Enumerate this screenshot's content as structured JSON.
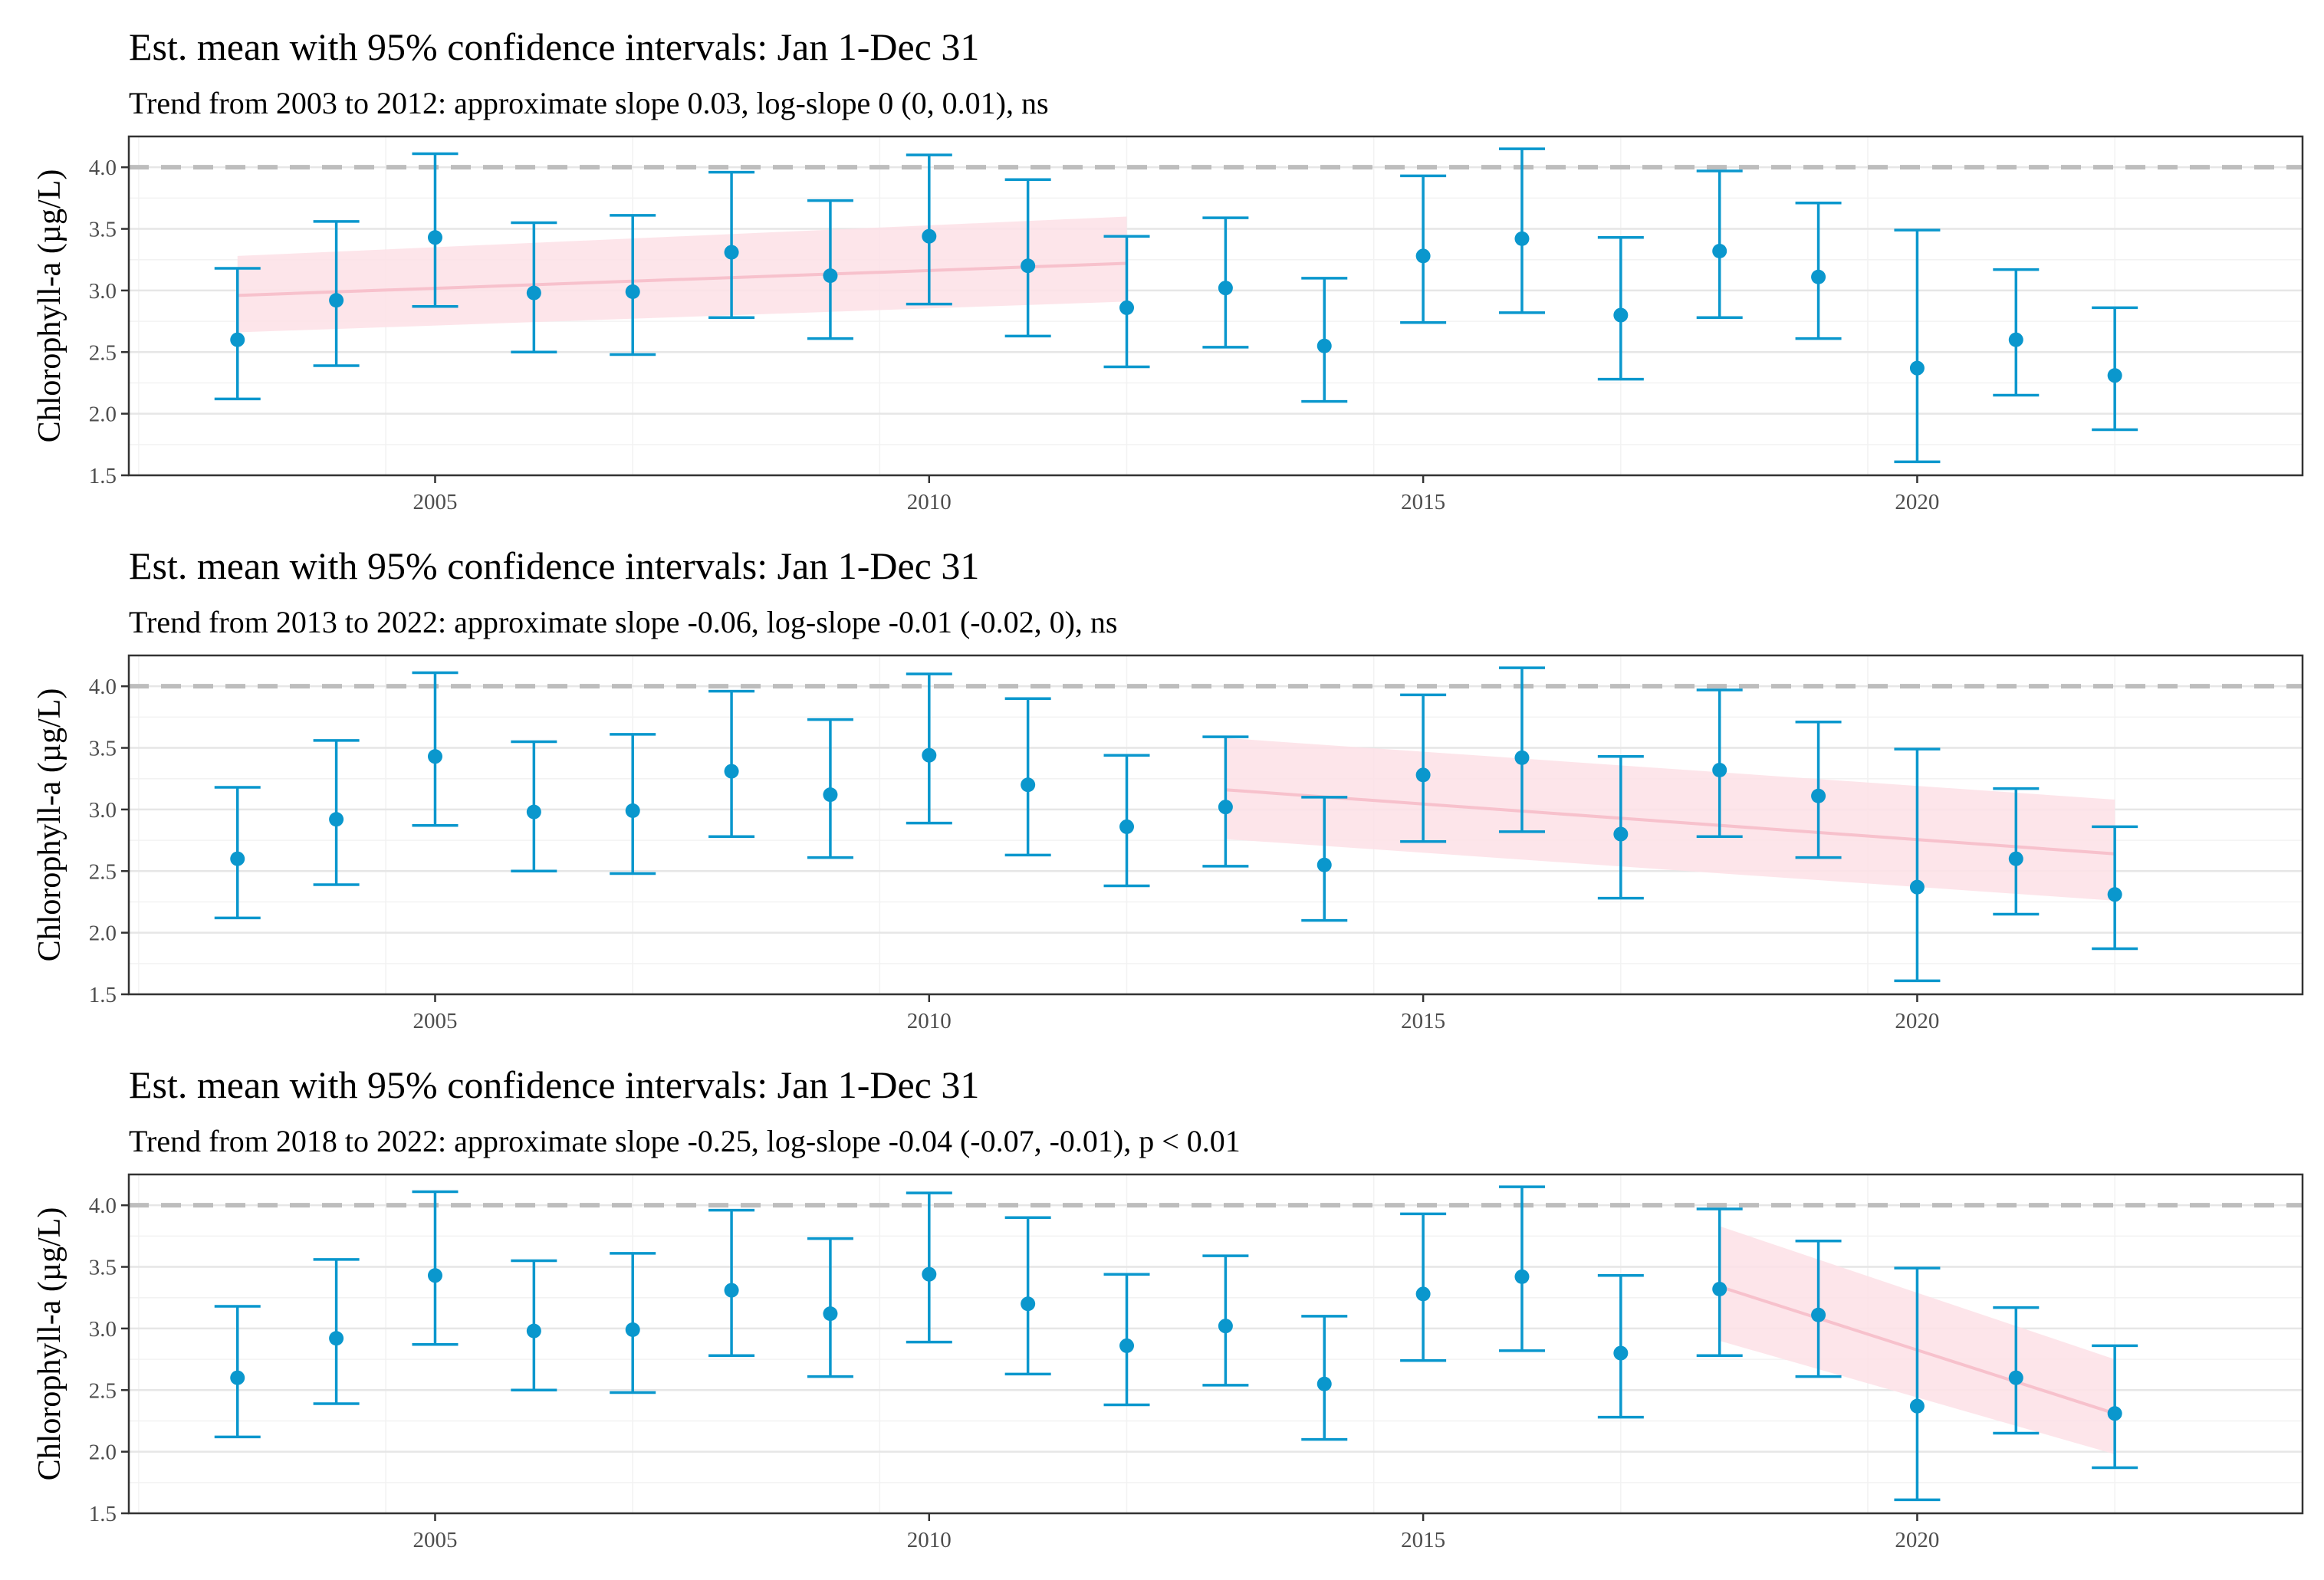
{
  "figure": {
    "panels": [
      {
        "title": "Est. mean with 95% confidence intervals: Jan 1-Dec 31",
        "subtitle": "Trend from 2003 to 2012: approximate slope 0.03, log-slope 0 (0, 0.01), ns"
      },
      {
        "title": "Est. mean with 95% confidence intervals: Jan 1-Dec 31",
        "subtitle": "Trend from 2013 to 2022: approximate slope -0.06, log-slope -0.01 (-0.02, 0), ns"
      },
      {
        "title": "Est. mean with 95% confidence intervals: Jan 1-Dec 31",
        "subtitle": "Trend from 2018 to 2022: approximate slope -0.25, log-slope -0.04 (-0.07, -0.01), p < 0.01"
      }
    ]
  },
  "chart_data": [
    {
      "type": "scatter",
      "title": "Est. mean with 95% confidence intervals: Jan 1-Dec 31",
      "subtitle": "Trend from 2003 to 2012: approximate slope 0.03, log-slope 0 (0, 0.01), ns",
      "xlabel": "",
      "ylabel": "Chlorophyll-a (µg/L)",
      "xlim": [
        2001.9,
        2023.9
      ],
      "ylim": [
        1.5,
        4.25
      ],
      "x_ticks": [
        2005,
        2010,
        2015,
        2020
      ],
      "y_ticks": [
        1.5,
        2.0,
        2.5,
        3.0,
        3.5,
        4.0
      ],
      "y_tick_labels": [
        "1.5",
        "2.0",
        "2.5",
        "3.0",
        "3.5",
        "4.0"
      ],
      "grid": true,
      "reference_line": {
        "y": 4.0,
        "style": "dashed",
        "color": "#bdbdbd"
      },
      "point_color": "#0a97cd",
      "trend_color": "#f7c1cc",
      "band_color": "#fde0e6",
      "x": [
        2003,
        2004,
        2005,
        2006,
        2007,
        2008,
        2009,
        2010,
        2011,
        2012,
        2013,
        2014,
        2015,
        2016,
        2017,
        2018,
        2019,
        2020,
        2021,
        2022
      ],
      "mean": [
        2.6,
        2.92,
        3.43,
        2.98,
        2.99,
        3.31,
        3.12,
        3.44,
        3.2,
        2.86,
        3.02,
        2.55,
        3.28,
        3.42,
        2.8,
        3.32,
        3.11,
        2.37,
        2.6,
        2.31
      ],
      "lower": [
        2.12,
        2.39,
        2.87,
        2.5,
        2.48,
        2.78,
        2.61,
        2.89,
        2.63,
        2.38,
        2.54,
        2.1,
        2.74,
        2.82,
        2.28,
        2.78,
        2.61,
        1.61,
        2.15,
        1.87
      ],
      "upper": [
        3.18,
        3.56,
        4.11,
        3.55,
        3.61,
        3.96,
        3.73,
        4.1,
        3.9,
        3.44,
        3.59,
        3.1,
        3.93,
        4.15,
        3.43,
        3.97,
        3.71,
        3.49,
        3.17,
        2.86
      ],
      "trend": {
        "x": [
          2003,
          2012
        ],
        "y": [
          2.96,
          3.22
        ],
        "band_lower": [
          2.66,
          2.91
        ],
        "band_upper": [
          3.28,
          3.6
        ]
      }
    },
    {
      "type": "scatter",
      "title": "Est. mean with 95% confidence intervals: Jan 1-Dec 31",
      "subtitle": "Trend from 2013 to 2022: approximate slope -0.06, log-slope -0.01 (-0.02, 0), ns",
      "xlabel": "",
      "ylabel": "Chlorophyll-a (µg/L)",
      "xlim": [
        2001.9,
        2023.9
      ],
      "ylim": [
        1.5,
        4.25
      ],
      "x_ticks": [
        2005,
        2010,
        2015,
        2020
      ],
      "y_ticks": [
        1.5,
        2.0,
        2.5,
        3.0,
        3.5,
        4.0
      ],
      "y_tick_labels": [
        "1.5",
        "2.0",
        "2.5",
        "3.0",
        "3.5",
        "4.0"
      ],
      "grid": true,
      "reference_line": {
        "y": 4.0,
        "style": "dashed",
        "color": "#bdbdbd"
      },
      "point_color": "#0a97cd",
      "trend_color": "#f7c1cc",
      "band_color": "#fde0e6",
      "x": [
        2003,
        2004,
        2005,
        2006,
        2007,
        2008,
        2009,
        2010,
        2011,
        2012,
        2013,
        2014,
        2015,
        2016,
        2017,
        2018,
        2019,
        2020,
        2021,
        2022
      ],
      "mean": [
        2.6,
        2.92,
        3.43,
        2.98,
        2.99,
        3.31,
        3.12,
        3.44,
        3.2,
        2.86,
        3.02,
        2.55,
        3.28,
        3.42,
        2.8,
        3.32,
        3.11,
        2.37,
        2.6,
        2.31
      ],
      "lower": [
        2.12,
        2.39,
        2.87,
        2.5,
        2.48,
        2.78,
        2.61,
        2.89,
        2.63,
        2.38,
        2.54,
        2.1,
        2.74,
        2.82,
        2.28,
        2.78,
        2.61,
        1.61,
        2.15,
        1.87
      ],
      "upper": [
        3.18,
        3.56,
        4.11,
        3.55,
        3.61,
        3.96,
        3.73,
        4.1,
        3.9,
        3.44,
        3.59,
        3.1,
        3.93,
        4.15,
        3.43,
        3.97,
        3.71,
        3.49,
        3.17,
        2.86
      ],
      "trend": {
        "x": [
          2013,
          2022
        ],
        "y": [
          3.16,
          2.64
        ],
        "band_lower": [
          2.76,
          2.26
        ],
        "band_upper": [
          3.58,
          3.08
        ]
      }
    },
    {
      "type": "scatter",
      "title": "Est. mean with 95% confidence intervals: Jan 1-Dec 31",
      "subtitle": "Trend from 2018 to 2022: approximate slope -0.25, log-slope -0.04 (-0.07, -0.01), p < 0.01",
      "xlabel": "",
      "ylabel": "Chlorophyll-a (µg/L)",
      "xlim": [
        2001.9,
        2023.9
      ],
      "ylim": [
        1.5,
        4.25
      ],
      "x_ticks": [
        2005,
        2010,
        2015,
        2020
      ],
      "y_ticks": [
        1.5,
        2.0,
        2.5,
        3.0,
        3.5,
        4.0
      ],
      "y_tick_labels": [
        "1.5",
        "2.0",
        "2.5",
        "3.0",
        "3.5",
        "4.0"
      ],
      "grid": true,
      "reference_line": {
        "y": 4.0,
        "style": "dashed",
        "color": "#bdbdbd"
      },
      "point_color": "#0a97cd",
      "trend_color": "#f7c1cc",
      "band_color": "#fde0e6",
      "x": [
        2003,
        2004,
        2005,
        2006,
        2007,
        2008,
        2009,
        2010,
        2011,
        2012,
        2013,
        2014,
        2015,
        2016,
        2017,
        2018,
        2019,
        2020,
        2021,
        2022
      ],
      "mean": [
        2.6,
        2.92,
        3.43,
        2.98,
        2.99,
        3.31,
        3.12,
        3.44,
        3.2,
        2.86,
        3.02,
        2.55,
        3.28,
        3.42,
        2.8,
        3.32,
        3.11,
        2.37,
        2.6,
        2.31
      ],
      "lower": [
        2.12,
        2.39,
        2.87,
        2.5,
        2.48,
        2.78,
        2.61,
        2.89,
        2.63,
        2.38,
        2.54,
        2.1,
        2.74,
        2.82,
        2.28,
        2.78,
        2.61,
        1.61,
        2.15,
        1.87
      ],
      "upper": [
        3.18,
        3.56,
        4.11,
        3.55,
        3.61,
        3.96,
        3.73,
        4.1,
        3.9,
        3.44,
        3.59,
        3.1,
        3.93,
        4.15,
        3.43,
        3.97,
        3.71,
        3.49,
        3.17,
        2.86
      ],
      "trend": {
        "x": [
          2018,
          2022
        ],
        "y": [
          3.34,
          2.31
        ],
        "band_lower": [
          2.9,
          1.98
        ],
        "band_upper": [
          3.83,
          2.75
        ]
      }
    }
  ]
}
